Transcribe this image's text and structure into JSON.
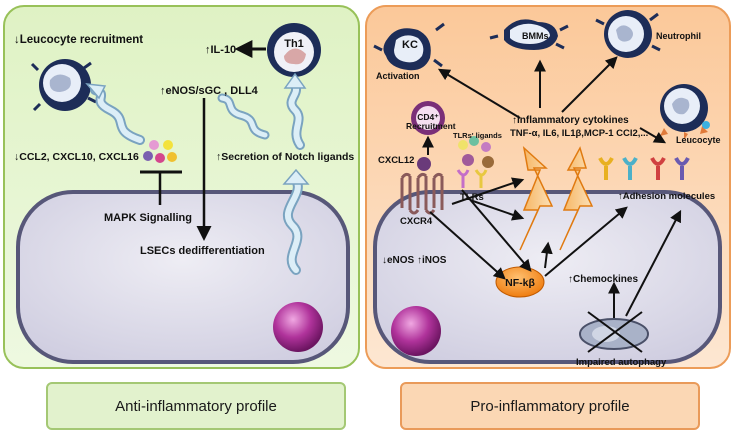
{
  "left_panel": {
    "leucocyte_recruitment": "↓Leucocyte recruitment",
    "il10": "↑IL-10",
    "th1": "Th1",
    "enos_sgc": "↑eNOS/sGC , DLL4",
    "chemokines_down": "↓CCL2, CXCL10, CXCL16",
    "notch": "↑Secretion of Notch ligands",
    "mapk": "MAPK Signalling",
    "lsec": "LSECs dedifferentiation"
  },
  "right_panel": {
    "kc": "KC",
    "activation": "Activation",
    "bmms": "BMMs",
    "neutrophil": "Neutrophil",
    "leucocyte": "Leucocyte",
    "cd4_label": "CD4⁺",
    "recruitment": "Recruitment",
    "tlr_ligands": "TLRs' ligands",
    "cxcl12": "CXCL12",
    "tlrs": "TLRs",
    "cxcr4": "CXCR4",
    "cytokines_line1": "↑inflammatory cytokines",
    "cytokines_line2": "TNF-α, IL6, IL1β,MCP-1 CCl2,...",
    "adhesion": "↑Adhesion molecules",
    "enos_inos": "↓eNOS ↑iNOS",
    "nfkb": "NF-kβ",
    "chemockines": "↑Chemockines",
    "autophagy": "Impaired autophagy"
  },
  "footer": {
    "anti": "Anti-inflammatory profile",
    "pro": "Pro-inflammatory profile"
  },
  "colors": {
    "left_bg": "#e4f5cf",
    "left_border": "#98c159",
    "right_bg": "#fbd4ae",
    "right_border": "#ec9c58",
    "cell_fill": "#dcdae8",
    "cell_border": "#575779",
    "nucleus": "#b0339b",
    "arrow_fill": "#dceef7",
    "arrow_stroke": "#7aa3c0"
  }
}
